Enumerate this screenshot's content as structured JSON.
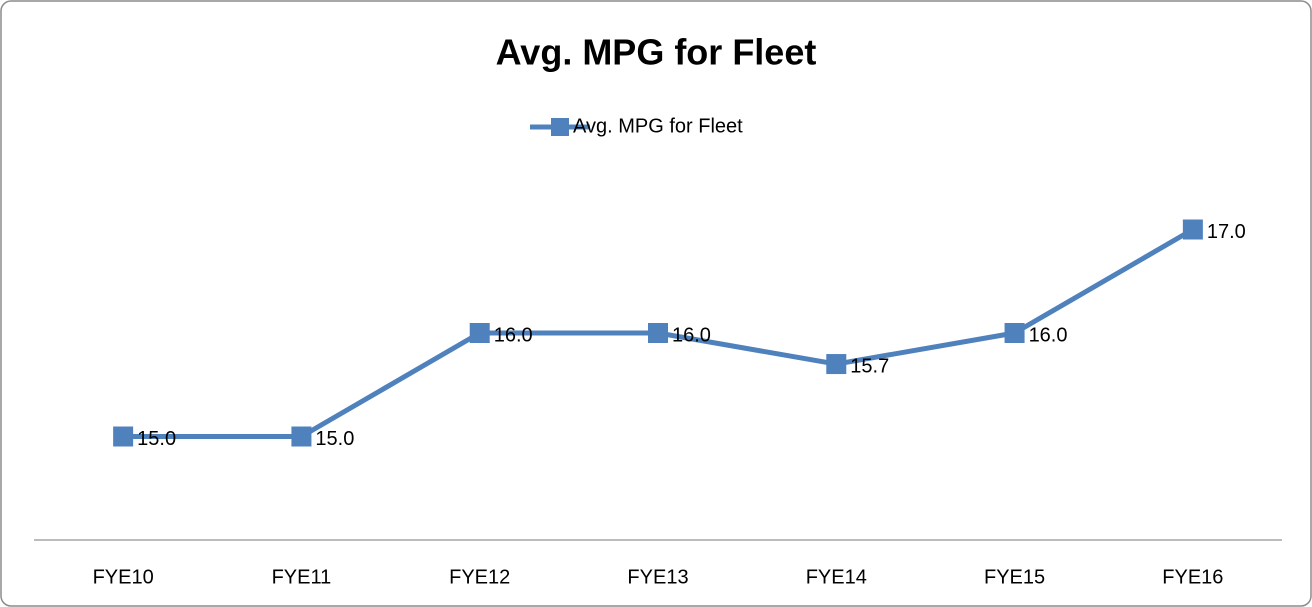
{
  "chart_data": {
    "type": "line",
    "title": "Avg. MPG for Fleet",
    "categories": [
      "FYE10",
      "FYE11",
      "FYE12",
      "FYE13",
      "FYE14",
      "FYE15",
      "FYE16"
    ],
    "series": [
      {
        "name": "Avg. MPG for Fleet",
        "color": "#4f81bd",
        "values": [
          15,
          15,
          16,
          16,
          15.7,
          16,
          17
        ],
        "value_labels": [
          "15.0",
          "15.0",
          "16.0",
          "16.0",
          "15.7",
          "16.0",
          "17.0"
        ]
      }
    ],
    "ylim": [
      14,
      18
    ],
    "legend": "top"
  }
}
